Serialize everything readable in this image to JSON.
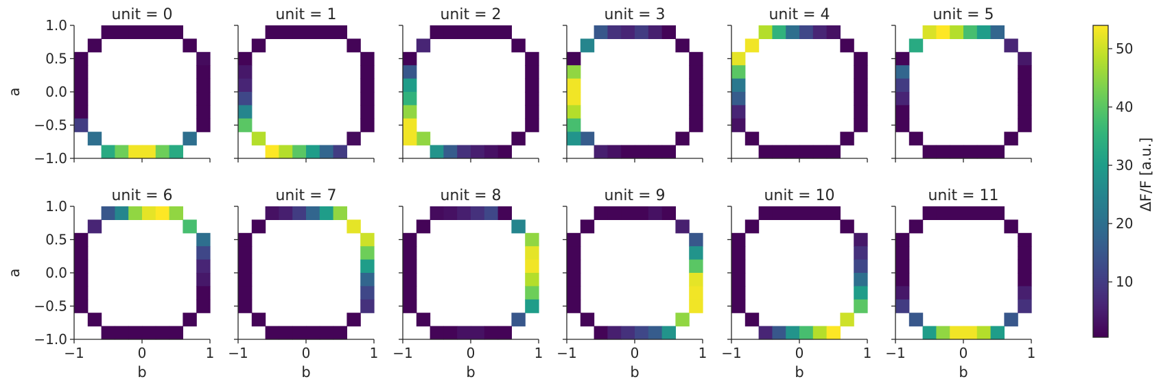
{
  "chart_data": {
    "type": "heatmap",
    "description_layout": "2x6 facet grid of 10x10 binned heatmaps on a circle of radius 1",
    "x_label": "b",
    "y_label": "a",
    "xlim": [
      -1,
      1
    ],
    "ylim": [
      -1,
      1
    ],
    "x_ticks": [
      "−1",
      "0",
      "1"
    ],
    "y_ticks": [
      "1.0",
      "0.5",
      "0.0",
      "−0.5",
      "−1.0"
    ],
    "bins": 10,
    "colorbar": {
      "label": "ΔF/F [a.u.]",
      "colormap": "viridis",
      "vmin": 0.5,
      "vmax": 54,
      "ticks": [
        "10",
        "20",
        "30",
        "40",
        "50"
      ],
      "tick_values": [
        10,
        20,
        30,
        40,
        50
      ]
    },
    "ring_cells": [
      [
        0,
        3
      ],
      [
        0,
        4
      ],
      [
        0,
        5
      ],
      [
        0,
        6
      ],
      [
        0,
        7
      ],
      [
        0,
        8
      ],
      [
        1,
        2
      ],
      [
        1,
        9
      ],
      [
        2,
        1
      ],
      [
        3,
        1
      ],
      [
        4,
        1
      ],
      [
        5,
        1
      ],
      [
        6,
        1
      ],
      [
        7,
        1
      ],
      [
        8,
        2
      ],
      [
        8,
        9
      ],
      [
        9,
        3
      ],
      [
        9,
        4
      ],
      [
        9,
        5
      ],
      [
        9,
        6
      ],
      [
        9,
        7
      ],
      [
        9,
        8
      ],
      [
        2,
        10
      ],
      [
        3,
        10
      ],
      [
        4,
        10
      ],
      [
        5,
        10
      ],
      [
        6,
        10
      ],
      [
        7,
        10
      ]
    ],
    "panels": [
      {
        "title": "unit = 0",
        "values": {
          "9,3": 33,
          "9,4": 42,
          "9,5": 53,
          "9,6": 53,
          "9,7": 42,
          "9,8": 33,
          "8,2": 20,
          "8,9": 20,
          "7,1": 10,
          "2,10": 2
        }
      },
      {
        "title": "unit = 1",
        "values": {
          "9,3": 54,
          "9,4": 48,
          "9,5": 40,
          "9,6": 30,
          "9,7": 18,
          "9,8": 10,
          "8,2": 48,
          "7,1": 40,
          "6,1": 25,
          "5,1": 12,
          "4,1": 6,
          "3,1": 4,
          "8,9": 2
        }
      },
      {
        "title": "unit = 2",
        "values": {
          "3,1": 15,
          "4,1": 30,
          "5,1": 35,
          "6,1": 45,
          "7,1": 53,
          "8,1": 53,
          "8,2": 45,
          "9,3": 28,
          "9,4": 16,
          "9,5": 8,
          "9,6": 5,
          "9,7": 3,
          "1,2": 6
        }
      },
      {
        "title": "unit = 3",
        "values": {
          "3,1": 45,
          "4,1": 53,
          "5,1": 53,
          "6,1": 48,
          "7,1": 38,
          "8,1": 28,
          "8,2": 16,
          "1,2": 25,
          "0,3": 15,
          "0,4": 8,
          "0,5": 6,
          "0,6": 10,
          "0,7": 5,
          "9,3": 5,
          "9,4": 3
        }
      },
      {
        "title": "unit = 4",
        "values": {
          "0,3": 48,
          "0,4": 35,
          "0,5": 20,
          "0,6": 12,
          "0,7": 6,
          "0,8": 3,
          "1,2": 53,
          "2,1": 52,
          "3,1": 40,
          "4,1": 22,
          "5,1": 16,
          "6,1": 6,
          "7,1": 3
        }
      },
      {
        "title": "unit = 5",
        "values": {
          "0,3": 51,
          "0,4": 54,
          "0,5": 48,
          "0,6": 38,
          "0,7": 30,
          "0,8": 18,
          "1,2": 33,
          "1,9": 6,
          "2,10": 4,
          "3,1": 18,
          "4,1": 10,
          "5,1": 6
        }
      },
      {
        "title": "unit = 6",
        "values": {
          "0,3": 15,
          "0,4": 25,
          "0,5": 45,
          "0,6": 52,
          "0,7": 54,
          "0,8": 45,
          "1,2": 6,
          "1,9": 38,
          "2,10": 20,
          "3,10": 12,
          "4,10": 6,
          "5,10": 4
        }
      },
      {
        "title": "unit = 7",
        "values": {
          "0,3": 3,
          "0,4": 5,
          "0,5": 10,
          "0,6": 18,
          "0,7": 30,
          "0,8": 45,
          "1,9": 52,
          "2,10": 50,
          "3,10": 42,
          "4,10": 30,
          "5,10": 18,
          "6,10": 12,
          "7,10": 8
        }
      },
      {
        "title": "unit = 8",
        "values": {
          "0,3": 2,
          "0,4": 3,
          "0,5": 5,
          "0,6": 8,
          "0,7": 12,
          "1,9": 25,
          "2,10": 45,
          "3,10": 52,
          "4,10": 53,
          "5,10": 48,
          "6,10": 42,
          "7,10": 30,
          "8,9": 15,
          "9,5": 3,
          "9,6": 3
        }
      },
      {
        "title": "unit = 9",
        "values": {
          "1,9": 5,
          "2,10": 15,
          "3,10": 28,
          "4,10": 40,
          "5,10": 52,
          "6,10": 53,
          "7,10": 53,
          "8,9": 45,
          "9,8": 28,
          "9,7": 16,
          "9,6": 12,
          "9,5": 8,
          "9,4": 5,
          "0,7": 3
        }
      },
      {
        "title": "unit = 10",
        "values": {
          "2,10": 4,
          "3,10": 8,
          "4,10": 12,
          "5,10": 20,
          "6,10": 30,
          "7,10": 40,
          "8,9": 50,
          "9,8": 54,
          "9,7": 48,
          "9,6": 38,
          "9,5": 28,
          "9,4": 15,
          "9,3": 6
        }
      },
      {
        "title": "unit = 11",
        "values": {
          "9,3": 30,
          "9,4": 45,
          "9,5": 53,
          "9,6": 53,
          "9,7": 48,
          "9,8": 30,
          "8,2": 15,
          "8,9": 15,
          "7,1": 10,
          "7,10": 8,
          "6,10": 5,
          "6,1": 4
        }
      }
    ]
  }
}
